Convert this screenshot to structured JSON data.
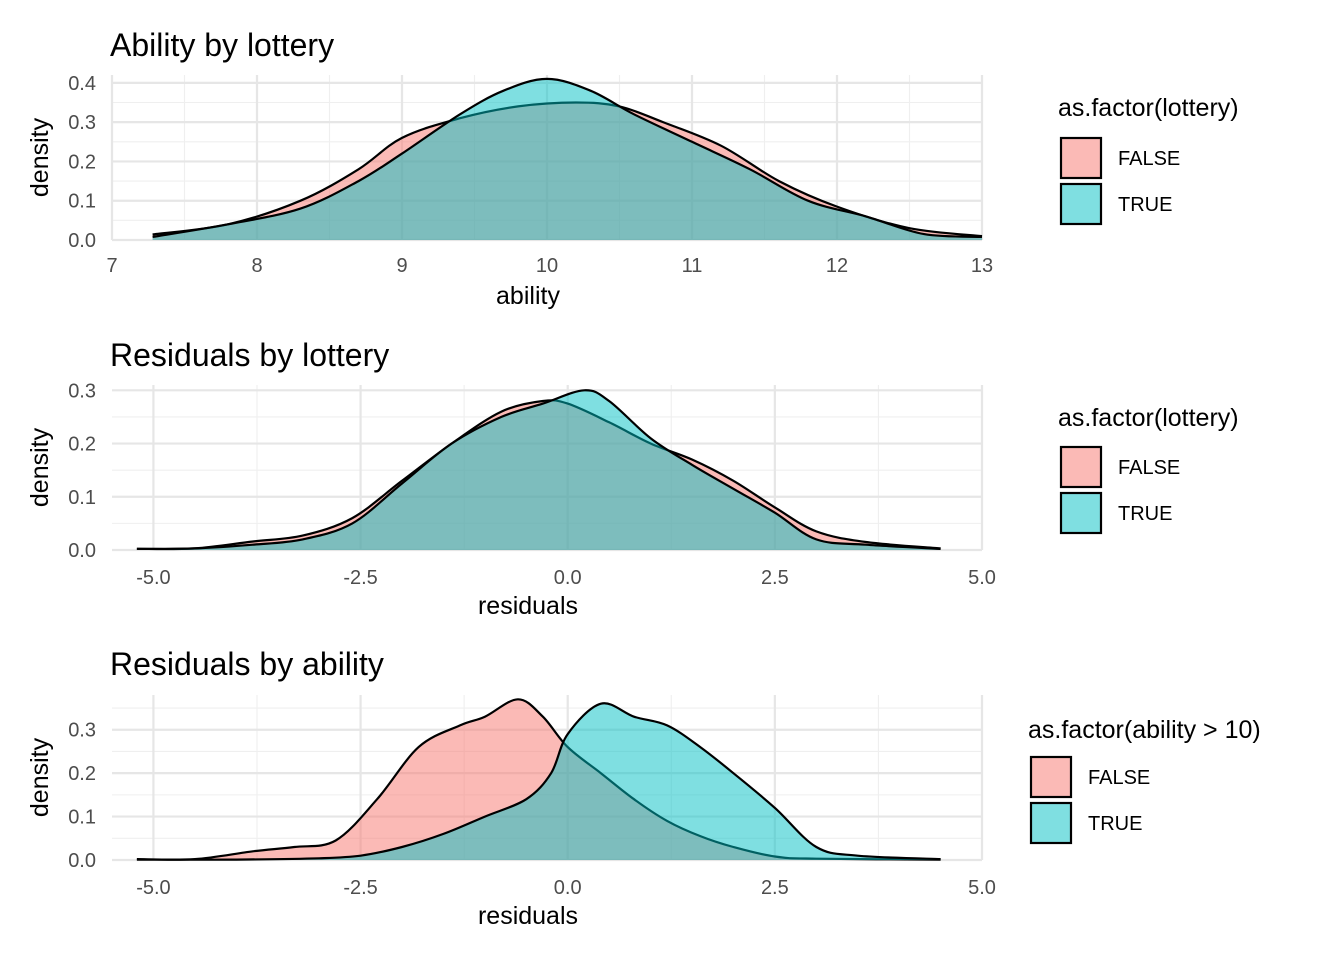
{
  "chart_data": [
    {
      "type": "area",
      "subtype": "density",
      "title": "Ability by lottery",
      "xlabel": "ability",
      "ylabel": "density",
      "xlim": [
        7,
        13
      ],
      "ylim": [
        0,
        0.42
      ],
      "xticks": [
        7,
        8,
        9,
        10,
        11,
        12,
        13
      ],
      "xtick_labels": [
        "7",
        "8",
        "9",
        "10",
        "11",
        "12",
        "13"
      ],
      "yticks": [
        0,
        0.1,
        0.2,
        0.3,
        0.4
      ],
      "ytick_labels": [
        "0.0",
        "0.1",
        "0.2",
        "0.3",
        "0.4"
      ],
      "legend": {
        "title": "as.factor(lottery)",
        "entries": [
          "FALSE",
          "TRUE"
        ],
        "placement": "right"
      },
      "series": [
        {
          "name": "FALSE",
          "color": "#F8766D",
          "x": [
            7.28,
            7.8,
            8.3,
            8.7,
            9.0,
            9.4,
            9.8,
            10.2,
            10.5,
            10.8,
            11.2,
            11.6,
            12.0,
            12.5,
            13.0
          ],
          "y": [
            0.014,
            0.04,
            0.1,
            0.18,
            0.26,
            0.31,
            0.34,
            0.35,
            0.34,
            0.3,
            0.24,
            0.15,
            0.085,
            0.03,
            0.01
          ]
        },
        {
          "name": "TRUE",
          "color": "#00BFC4",
          "x": [
            7.28,
            7.8,
            8.3,
            8.7,
            9.0,
            9.4,
            9.7,
            10.0,
            10.3,
            10.6,
            11.0,
            11.4,
            11.8,
            12.2,
            12.6,
            13.0
          ],
          "y": [
            0.008,
            0.04,
            0.08,
            0.15,
            0.22,
            0.32,
            0.38,
            0.41,
            0.38,
            0.32,
            0.25,
            0.18,
            0.1,
            0.06,
            0.015,
            0.008
          ]
        }
      ]
    },
    {
      "type": "area",
      "subtype": "density",
      "title": "Residuals by lottery",
      "xlabel": "residuals",
      "ylabel": "density",
      "xlim": [
        -5.5,
        5.0
      ],
      "ylim": [
        0,
        0.31
      ],
      "xticks": [
        -5.0,
        -2.5,
        0.0,
        2.5,
        5.0
      ],
      "xtick_labels": [
        "-5.0",
        "-2.5",
        "0.0",
        "2.5",
        "5.0"
      ],
      "yticks": [
        0,
        0.1,
        0.2,
        0.3
      ],
      "ytick_labels": [
        "0.0",
        "0.1",
        "0.2",
        "0.3"
      ],
      "legend": {
        "title": "as.factor(lottery)",
        "entries": [
          "FALSE",
          "TRUE"
        ],
        "placement": "right"
      },
      "series": [
        {
          "name": "FALSE",
          "color": "#F8766D",
          "x": [
            -5.2,
            -4.5,
            -3.8,
            -3.2,
            -2.6,
            -2.0,
            -1.4,
            -0.8,
            -0.3,
            0.0,
            0.5,
            1.0,
            1.5,
            2.0,
            2.5,
            3.0,
            3.6,
            4.5
          ],
          "y": [
            0.002,
            0.003,
            0.016,
            0.027,
            0.06,
            0.13,
            0.2,
            0.26,
            0.28,
            0.275,
            0.24,
            0.2,
            0.17,
            0.13,
            0.08,
            0.035,
            0.015,
            0.003
          ]
        },
        {
          "name": "TRUE",
          "color": "#00BFC4",
          "x": [
            -5.2,
            -4.5,
            -3.8,
            -3.2,
            -2.6,
            -2.0,
            -1.4,
            -0.8,
            -0.3,
            0.2,
            0.5,
            1.0,
            1.5,
            2.0,
            2.5,
            3.0,
            3.6,
            4.5
          ],
          "y": [
            0.002,
            0.003,
            0.01,
            0.02,
            0.05,
            0.125,
            0.2,
            0.25,
            0.275,
            0.3,
            0.28,
            0.21,
            0.16,
            0.115,
            0.07,
            0.02,
            0.01,
            0.002
          ]
        }
      ]
    },
    {
      "type": "area",
      "subtype": "density",
      "title": "Residuals by ability",
      "xlabel": "residuals",
      "ylabel": "density",
      "xlim": [
        -5.5,
        5.0
      ],
      "ylim": [
        0,
        0.38
      ],
      "xticks": [
        -5.0,
        -2.5,
        0.0,
        2.5,
        5.0
      ],
      "xtick_labels": [
        "-5.0",
        "-2.5",
        "0.0",
        "2.5",
        "5.0"
      ],
      "yticks": [
        0,
        0.1,
        0.2,
        0.3
      ],
      "ytick_labels": [
        "0.0",
        "0.1",
        "0.2",
        "0.3"
      ],
      "legend": {
        "title": "as.factor(ability > 10)",
        "entries": [
          "FALSE",
          "TRUE"
        ],
        "placement": "right"
      },
      "series": [
        {
          "name": "FALSE",
          "color": "#F8766D",
          "x": [
            -5.2,
            -4.5,
            -3.8,
            -3.3,
            -2.8,
            -2.3,
            -1.8,
            -1.3,
            -1.0,
            -0.6,
            -0.3,
            0.0,
            0.4,
            0.8,
            1.2,
            1.6,
            2.0,
            2.5,
            3.0,
            4.5
          ],
          "y": [
            0.002,
            0.002,
            0.02,
            0.03,
            0.045,
            0.14,
            0.26,
            0.31,
            0.33,
            0.37,
            0.33,
            0.26,
            0.2,
            0.14,
            0.09,
            0.055,
            0.03,
            0.008,
            0.003,
            0.001
          ]
        },
        {
          "name": "TRUE",
          "color": "#00BFC4",
          "x": [
            -5.2,
            -4.0,
            -3.0,
            -2.5,
            -2.0,
            -1.5,
            -1.0,
            -0.5,
            -0.2,
            0.0,
            0.4,
            0.8,
            1.2,
            1.6,
            2.0,
            2.5,
            3.0,
            3.5,
            4.5
          ],
          "y": [
            0.001,
            0.001,
            0.004,
            0.01,
            0.03,
            0.06,
            0.1,
            0.14,
            0.2,
            0.29,
            0.36,
            0.33,
            0.31,
            0.26,
            0.2,
            0.12,
            0.03,
            0.01,
            0.002
          ]
        }
      ]
    }
  ],
  "colors": {
    "false_fill": "#F8766D",
    "true_fill": "#00BFC4",
    "overlap": "#7FA9A8"
  }
}
